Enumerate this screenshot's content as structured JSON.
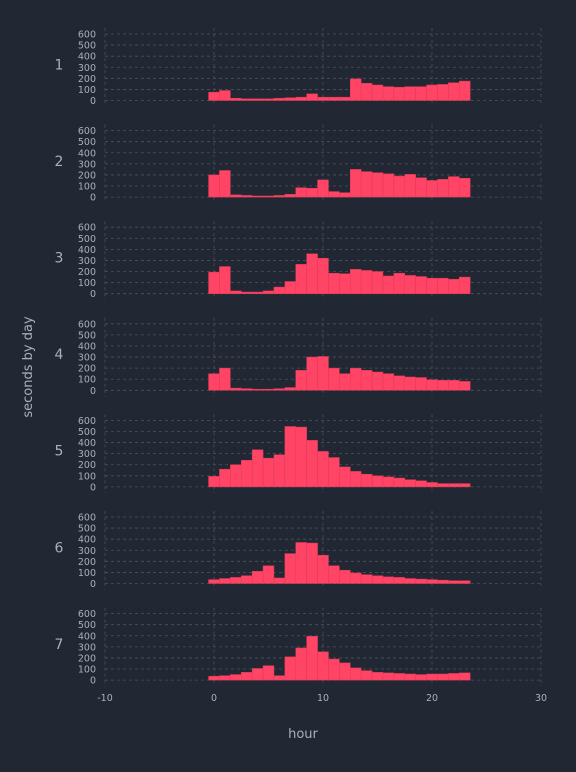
{
  "chart_data": {
    "type": "bar",
    "xlabel": "hour",
    "ylabel": "seconds by day",
    "xlim": [
      -10,
      30
    ],
    "xticks": [
      -10,
      0,
      10,
      20,
      30
    ],
    "ylim": [
      0,
      600
    ],
    "yticks": [
      0,
      100,
      200,
      300,
      400,
      500,
      600
    ],
    "grid": true,
    "bar_color": "#ff4466",
    "background": "#212833",
    "text_color": "#a9b0ba",
    "x": [
      0,
      1,
      2,
      3,
      4,
      5,
      6,
      7,
      8,
      9,
      10,
      11,
      12,
      13,
      14,
      15,
      16,
      17,
      18,
      19,
      20,
      21,
      22,
      23
    ],
    "panels": [
      {
        "label": "1",
        "values": [
          75,
          90,
          20,
          15,
          15,
          15,
          20,
          25,
          30,
          60,
          30,
          30,
          30,
          195,
          155,
          140,
          125,
          120,
          125,
          125,
          140,
          145,
          160,
          175
        ]
      },
      {
        "label": "2",
        "values": [
          200,
          240,
          20,
          15,
          10,
          10,
          15,
          25,
          85,
          80,
          155,
          50,
          40,
          250,
          230,
          220,
          210,
          190,
          205,
          175,
          150,
          160,
          185,
          170
        ]
      },
      {
        "label": "3",
        "values": [
          195,
          245,
          25,
          15,
          15,
          25,
          60,
          110,
          265,
          360,
          320,
          185,
          180,
          220,
          210,
          200,
          160,
          185,
          165,
          155,
          140,
          140,
          130,
          150
        ]
      },
      {
        "label": "4",
        "values": [
          150,
          200,
          20,
          15,
          10,
          10,
          15,
          25,
          180,
          300,
          305,
          200,
          150,
          200,
          180,
          165,
          150,
          130,
          120,
          115,
          95,
          90,
          90,
          80
        ]
      },
      {
        "label": "5",
        "values": [
          95,
          160,
          200,
          240,
          335,
          260,
          290,
          545,
          540,
          420,
          320,
          265,
          180,
          140,
          115,
          100,
          90,
          80,
          65,
          55,
          40,
          30,
          30,
          30
        ]
      },
      {
        "label": "6",
        "values": [
          35,
          45,
          55,
          70,
          110,
          160,
          50,
          270,
          370,
          365,
          255,
          160,
          120,
          95,
          80,
          70,
          60,
          55,
          45,
          40,
          35,
          30,
          25,
          25
        ]
      },
      {
        "label": "7",
        "values": [
          35,
          40,
          50,
          70,
          105,
          130,
          40,
          210,
          290,
          395,
          255,
          190,
          155,
          110,
          85,
          70,
          65,
          60,
          55,
          50,
          55,
          55,
          60,
          65
        ]
      }
    ]
  }
}
